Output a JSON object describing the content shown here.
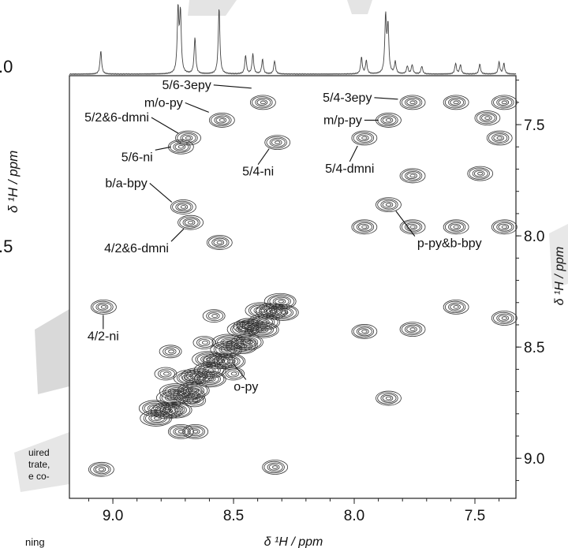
{
  "chart_data": {
    "type": "contour",
    "subtype": "2D NMR (1H-1H correlation) with projected 1D 1H spectrum on top",
    "xlabel": "δ ¹H / ppm",
    "ylabel": "δ ¹H / ppm",
    "xlim": [
      9.18,
      7.33
    ],
    "ylim": [
      7.28,
      9.18
    ],
    "x_reversed": true,
    "y_reversed": true,
    "x_ticks": [
      "9.0",
      "8.5",
      "8.0",
      "7.5"
    ],
    "y_ticks": [
      "7.5",
      "8.0",
      "8.5",
      "9.0"
    ],
    "x_tick_values": [
      9.0,
      8.5,
      8.0,
      7.5
    ],
    "y_tick_values": [
      7.5,
      8.0,
      8.5,
      9.0
    ],
    "grid": false,
    "annotations": [
      {
        "text": "5/6-3epy",
        "x": 8.38,
        "y": 7.4
      },
      {
        "text": "m/o-py",
        "x": 8.55,
        "y": 7.48
      },
      {
        "text": "5/2&6-dmni",
        "x": 8.69,
        "y": 7.56
      },
      {
        "text": "5/6-ni",
        "x": 8.72,
        "y": 7.6
      },
      {
        "text": "5/4-ni",
        "x": 8.32,
        "y": 7.58
      },
      {
        "text": "5/4-dmni",
        "x": 7.96,
        "y": 7.56
      },
      {
        "text": "5/4-3epy",
        "x": 7.76,
        "y": 7.4
      },
      {
        "text": "m/p-py",
        "x": 7.86,
        "y": 7.48
      },
      {
        "text": "b/a-bpy",
        "x": 8.71,
        "y": 7.87
      },
      {
        "text": "4/2&6-dmni",
        "x": 8.68,
        "y": 7.94
      },
      {
        "text": "p-py&b-bpy",
        "x": 7.86,
        "y": 7.86
      },
      {
        "text": "4/2-ni",
        "x": 9.04,
        "y": 8.32
      },
      {
        "text": "o-py",
        "x": 8.54,
        "y": 8.54
      }
    ],
    "cross_peaks": [
      {
        "x": 8.38,
        "y": 7.4
      },
      {
        "x": 8.55,
        "y": 7.48
      },
      {
        "x": 8.69,
        "y": 7.56
      },
      {
        "x": 8.72,
        "y": 7.6
      },
      {
        "x": 8.32,
        "y": 7.58
      },
      {
        "x": 7.96,
        "y": 7.56
      },
      {
        "x": 7.76,
        "y": 7.4
      },
      {
        "x": 7.86,
        "y": 7.48
      },
      {
        "x": 8.71,
        "y": 7.87
      },
      {
        "x": 8.68,
        "y": 7.94
      },
      {
        "x": 7.86,
        "y": 7.86
      },
      {
        "x": 9.04,
        "y": 8.32
      },
      {
        "x": 7.58,
        "y": 7.4
      },
      {
        "x": 7.45,
        "y": 7.47
      },
      {
        "x": 7.38,
        "y": 7.4
      },
      {
        "x": 7.4,
        "y": 7.56
      },
      {
        "x": 7.76,
        "y": 7.73
      },
      {
        "x": 7.48,
        "y": 7.72
      },
      {
        "x": 7.96,
        "y": 7.96
      },
      {
        "x": 7.76,
        "y": 7.96
      },
      {
        "x": 7.58,
        "y": 7.96
      },
      {
        "x": 7.38,
        "y": 7.96
      },
      {
        "x": 8.56,
        "y": 8.03
      },
      {
        "x": 7.58,
        "y": 8.32
      },
      {
        "x": 7.38,
        "y": 8.37
      },
      {
        "x": 7.76,
        "y": 8.42
      },
      {
        "x": 7.96,
        "y": 8.43
      },
      {
        "x": 7.86,
        "y": 8.73
      },
      {
        "x": 9.05,
        "y": 9.05
      },
      {
        "x": 8.33,
        "y": 9.04
      },
      {
        "x": 8.72,
        "y": 8.88
      },
      {
        "x": 8.66,
        "y": 8.88
      }
    ],
    "diagonal_cluster": {
      "from_ppm": 8.82,
      "to_ppm": 8.3
    },
    "projection_peaks_ppm": [
      9.05,
      8.73,
      8.72,
      8.66,
      8.56,
      8.45,
      8.42,
      8.38,
      8.33,
      7.97,
      7.95,
      7.87,
      7.86,
      7.83,
      7.78,
      7.76,
      7.72,
      7.58,
      7.56,
      7.48,
      7.4,
      7.38
    ]
  },
  "background_text": {
    "left_tick_upper": ".0",
    "left_tick_lower": ".5",
    "left_axis_title": "δ ¹H / ppm",
    "left_caption_lines": [
      "uired",
      "trate,",
      "e co-"
    ],
    "bottom_left_word": "ning"
  }
}
